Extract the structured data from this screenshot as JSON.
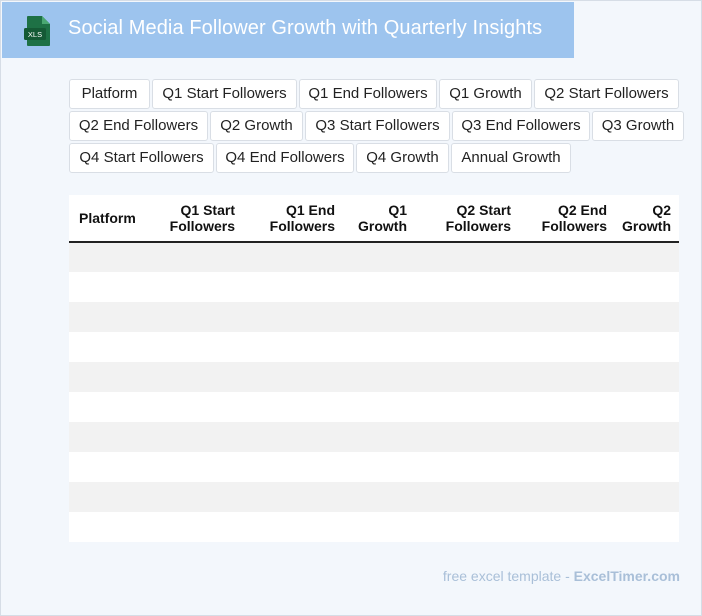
{
  "header": {
    "title": "Social Media Follower Growth with Quarterly Insights",
    "file_badge": "XLS"
  },
  "chips": [
    "Platform",
    "Q1 Start Followers",
    "Q1 End Followers",
    "Q1 Growth",
    "Q2 Start Followers",
    "Q2 End Followers",
    "Q2 Growth",
    "Q3 Start Followers",
    "Q3 End Followers",
    "Q3 Growth",
    "Q4 Start Followers",
    "Q4 End Followers",
    "Q4 Growth",
    "Annual Growth"
  ],
  "table": {
    "headers": [
      "Platform",
      "Q1 Start Followers",
      "Q1 End Followers",
      "Q1 Growth",
      "Q2 Start Followers",
      "Q2 End Followers",
      "Q2 Growth"
    ],
    "rows": [
      [
        "",
        "",
        "",
        "",
        "",
        "",
        ""
      ],
      [
        "",
        "",
        "",
        "",
        "",
        "",
        ""
      ],
      [
        "",
        "",
        "",
        "",
        "",
        "",
        ""
      ],
      [
        "",
        "",
        "",
        "",
        "",
        "",
        ""
      ],
      [
        "",
        "",
        "",
        "",
        "",
        "",
        ""
      ],
      [
        "",
        "",
        "",
        "",
        "",
        "",
        ""
      ],
      [
        "",
        "",
        "",
        "",
        "",
        "",
        ""
      ],
      [
        "",
        "",
        "",
        "",
        "",
        "",
        ""
      ],
      [
        "",
        "",
        "",
        "",
        "",
        "",
        ""
      ],
      [
        "",
        "",
        "",
        "",
        "",
        "",
        ""
      ]
    ]
  },
  "footer": {
    "prefix": "free excel template - ",
    "brand": "ExcelTimer.com"
  },
  "colors": {
    "header_bg": "#9dc4ee",
    "icon_green": "#1e7145",
    "page_bg": "#f3f7fc"
  }
}
